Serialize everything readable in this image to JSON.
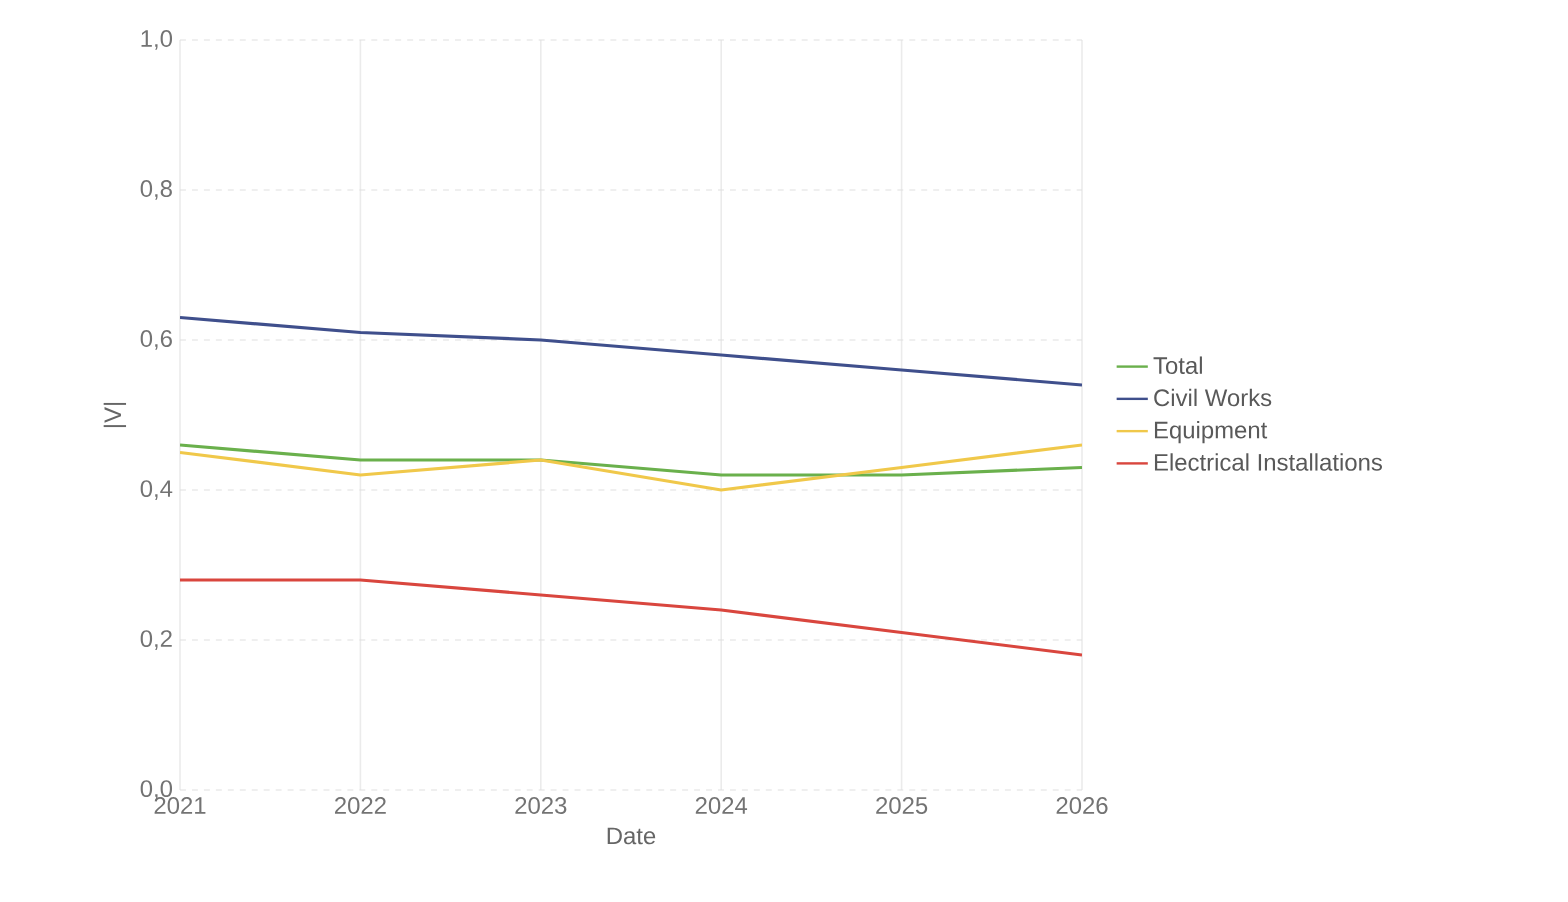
{
  "chart_data": {
    "type": "line",
    "xlabel": "Date",
    "ylabel": "|V|",
    "x": [
      2021,
      2022,
      2023,
      2024,
      2025,
      2026
    ],
    "series": [
      {
        "name": "Total",
        "color": "#6ab04c",
        "values": [
          0.46,
          0.44,
          0.44,
          0.42,
          0.42,
          0.43
        ]
      },
      {
        "name": "Civil Works",
        "color": "#3f4f8c",
        "values": [
          0.63,
          0.61,
          0.6,
          0.58,
          0.56,
          0.54
        ]
      },
      {
        "name": "Equipment",
        "color": "#f0c84a",
        "values": [
          0.45,
          0.42,
          0.44,
          0.4,
          0.43,
          0.46
        ]
      },
      {
        "name": "Electrical Installations",
        "color": "#d9463e",
        "values": [
          0.28,
          0.28,
          0.26,
          0.24,
          0.21,
          0.18
        ]
      }
    ],
    "xlim": [
      2021,
      2026
    ],
    "xticks": [
      2021,
      2022,
      2023,
      2024,
      2025,
      2026
    ],
    "ylim": [
      0,
      1
    ],
    "yticks": [
      {
        "value": 0,
        "label": "0,0"
      },
      {
        "value": 0.2,
        "label": "0,2"
      },
      {
        "value": 0.4,
        "label": "0,4"
      },
      {
        "value": 0.6,
        "label": "0,6"
      },
      {
        "value": 0.8,
        "label": "0,8"
      },
      {
        "value": 1,
        "label": "1,0"
      }
    ],
    "grid": true,
    "legend": "right",
    "line_style": "solid"
  }
}
